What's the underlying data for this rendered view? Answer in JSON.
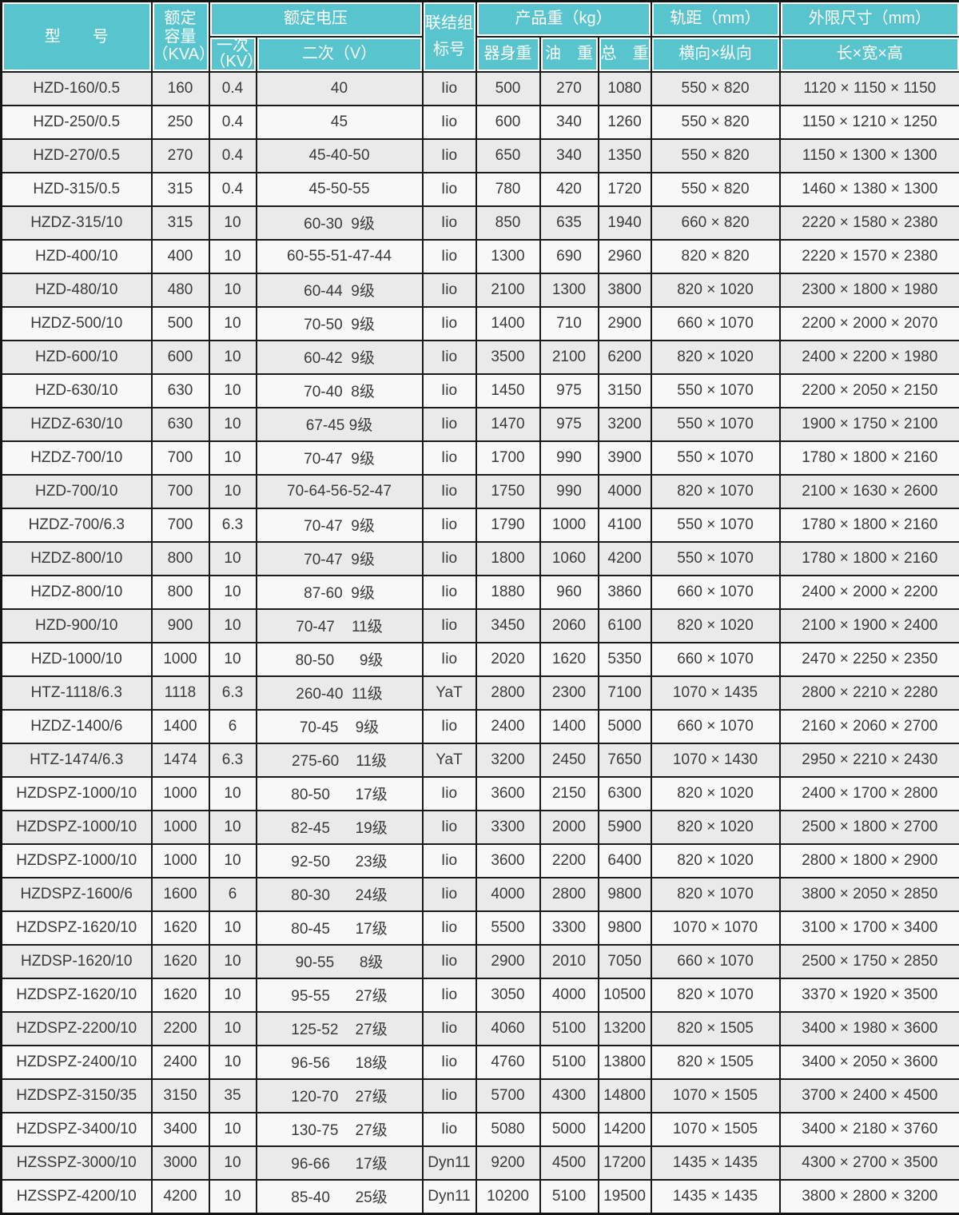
{
  "colors": {
    "header_bg": "#58C5CE",
    "header_text": "#FFFFFF",
    "row_odd_bg": "#EAEAEA",
    "row_even_bg": "#F8F8F8",
    "grid_line": "#1A1A1A",
    "body_text": "#3A3A3A"
  },
  "table": {
    "header": {
      "model": "型　　号",
      "capacity_l1": "额定",
      "capacity_l2": "容量",
      "capacity_l3": "（KVA）",
      "group_voltage": "额定电压",
      "primary_l1": "一次",
      "primary_l2": "（KV）",
      "secondary": "二次（V）",
      "vector_group_l1": "联结组",
      "vector_group_l2": "标号",
      "group_weight": "产品重（kg）",
      "body_weight": "器身重",
      "oil_weight": "油　重",
      "total_weight": "总　重",
      "group_gauge": "轨距（mm）",
      "gauge_sub": "横向×纵向",
      "group_dims": "外限尺寸（mm）",
      "dims_sub": "长×宽×高"
    },
    "col_keys": [
      "model",
      "capacity",
      "primary-kv",
      "secondary-v",
      "vector-group",
      "body-weight",
      "oil-weight",
      "total-weight",
      "gauge",
      "dimensions"
    ],
    "rows": [
      [
        "HZD-160/0.5",
        "160",
        "0.4",
        "40",
        "Iio",
        "500",
        "270",
        "1080",
        "550 × 820",
        "1120 × 1150 × 1150"
      ],
      [
        "HZD-250/0.5",
        "250",
        "0.4",
        "45",
        "Iio",
        "600",
        "340",
        "1260",
        "550 × 820",
        "1150 × 1210 × 1250"
      ],
      [
        "HZD-270/0.5",
        "270",
        "0.4",
        "45-40-50",
        "Iio",
        "650",
        "340",
        "1350",
        "550 × 820",
        "1150 × 1300 × 1300"
      ],
      [
        "HZD-315/0.5",
        "315",
        "0.4",
        "45-50-55",
        "Iio",
        "780",
        "420",
        "1720",
        "550 × 820",
        "1460 × 1380 × 1300"
      ],
      [
        "HZDZ-315/10",
        "315",
        "10",
        "60-30  9级",
        "Iio",
        "850",
        "635",
        "1940",
        "660 × 820",
        "2220 × 1580 × 2380"
      ],
      [
        "HZD-400/10",
        "400",
        "10",
        "60-55-51-47-44",
        "Iio",
        "1300",
        "690",
        "2960",
        "820 × 820",
        "2220 × 1570 × 2380"
      ],
      [
        "HZD-480/10",
        "480",
        "10",
        "60-44  9级",
        "Iio",
        "2100",
        "1300",
        "3800",
        "820 × 1020",
        "2300 × 1800 × 1980"
      ],
      [
        "HZDZ-500/10",
        "500",
        "10",
        "70-50  9级",
        "Iio",
        "1400",
        "710",
        "2900",
        "660 × 1070",
        "2200 × 2000 × 2070"
      ],
      [
        "HZD-600/10",
        "600",
        "10",
        "60-42  9级",
        "Iio",
        "3500",
        "2100",
        "6200",
        "820 × 1020",
        "2400 × 2200 × 1980"
      ],
      [
        "HZD-630/10",
        "630",
        "10",
        "70-40  8级",
        "Iio",
        "1450",
        "975",
        "3150",
        "550 × 1070",
        "2200 × 2050 × 2150"
      ],
      [
        "HZDZ-630/10",
        "630",
        "10",
        "67-45 9级",
        "Iio",
        "1470",
        "975",
        "3200",
        "550 × 1070",
        "1900 × 1750 × 2100"
      ],
      [
        "HZDZ-700/10",
        "700",
        "10",
        "70-47  9级",
        "Iio",
        "1700",
        "990",
        "3900",
        "550 × 1070",
        "1780 × 1800 × 2160"
      ],
      [
        "HZD-700/10",
        "700",
        "10",
        "70-64-56-52-47",
        "Iio",
        "1750",
        "990",
        "4000",
        "820 × 1070",
        "2100 × 1630 × 2600"
      ],
      [
        "HZDZ-700/6.3",
        "700",
        "6.3",
        "70-47  9级",
        "Iio",
        "1790",
        "1000",
        "4100",
        "550 × 1070",
        "1780 × 1800 × 2160"
      ],
      [
        "HZDZ-800/10",
        "800",
        "10",
        "70-47  9级",
        "Iio",
        "1800",
        "1060",
        "4200",
        "550 × 1070",
        "1780 × 1800 × 2160"
      ],
      [
        "HZDZ-800/10",
        "800",
        "10",
        "87-60  9级",
        "Iio",
        "1880",
        "960",
        "3860",
        "660 × 1070",
        "2400 × 2000 × 2200"
      ],
      [
        "HZD-900/10",
        "900",
        "10",
        "70-47    11级",
        "Iio",
        "3450",
        "2060",
        "6100",
        "820 × 1020",
        "2100 × 1900 × 2400"
      ],
      [
        "HZD-1000/10",
        "1000",
        "10",
        "80-50      9级",
        "Iio",
        "2020",
        "1620",
        "5350",
        "660 × 1070",
        "2470 × 2250 × 2350"
      ],
      [
        "HTZ-1118/6.3",
        "1118",
        "6.3",
        "260-40  11级",
        "YaT",
        "2800",
        "2300",
        "7100",
        "1070 × 1435",
        "2800 × 2210 × 2280"
      ],
      [
        "HZDZ-1400/6",
        "1400",
        "6",
        "70-45    9级",
        "Iio",
        "2400",
        "1400",
        "5000",
        "660 × 1070",
        "2160 × 2060 × 2700"
      ],
      [
        "HTZ-1474/6.3",
        "1474",
        "6.3",
        "275-60    11级",
        "YaT",
        "3200",
        "2450",
        "7650",
        "1070 × 1430",
        "2950 × 2210 × 2430"
      ],
      [
        "HZDSPZ-1000/10",
        "1000",
        "10",
        "80-50      17级",
        "Iio",
        "3600",
        "2150",
        "6300",
        "820 × 1020",
        "2400 × 1700 × 2800"
      ],
      [
        "HZDSPZ-1000/10",
        "1000",
        "10",
        "82-45      19级",
        "Iio",
        "3300",
        "2000",
        "5900",
        "820 × 1020",
        "2500 × 1800 × 2700"
      ],
      [
        "HZDSPZ-1000/10",
        "1000",
        "10",
        "92-50      23级",
        "Iio",
        "3600",
        "2200",
        "6400",
        "820 × 1020",
        "2800 × 1800 × 2900"
      ],
      [
        "HZDSPZ-1600/6",
        "1600",
        "6",
        "80-30      24级",
        "Iio",
        "4000",
        "2800",
        "9800",
        "820 × 1070",
        "3800 × 2050 × 2850"
      ],
      [
        "HZDSPZ-1620/10",
        "1620",
        "10",
        "80-45      17级",
        "Iio",
        "5500",
        "3300",
        "9800",
        "1070 × 1070",
        "3100 × 1700 × 3400"
      ],
      [
        "HZDSP-1620/10",
        "1620",
        "10",
        "90-55      8级",
        "Iio",
        "2900",
        "2010",
        "7050",
        "660 × 1070",
        "2500 × 1750 × 2850"
      ],
      [
        "HZDSPZ-1620/10",
        "1620",
        "10",
        "95-55      27级",
        "Iio",
        "3050",
        "4000",
        "10500",
        "820 × 1070",
        "3370 × 1920 × 3500"
      ],
      [
        "HZDSPZ-2200/10",
        "2200",
        "10",
        "125-52    27级",
        "Iio",
        "4060",
        "5100",
        "13200",
        "820 × 1505",
        "3400 × 1980 × 3600"
      ],
      [
        "HZDSPZ-2400/10",
        "2400",
        "10",
        "96-56      18级",
        "Iio",
        "4760",
        "5100",
        "13800",
        "820 × 1505",
        "3400 × 2050 × 3600"
      ],
      [
        "HZDSPZ-3150/35",
        "3150",
        "35",
        "120-70    27级",
        "Iio",
        "5700",
        "4300",
        "14800",
        "1070 × 1505",
        "3700 × 2400 × 4500"
      ],
      [
        "HZDSPZ-3400/10",
        "3400",
        "10",
        "130-75    27级",
        "Iio",
        "5080",
        "5000",
        "14200",
        "1070 × 1505",
        "3400 × 2180 × 3760"
      ],
      [
        "HZSSPZ-3000/10",
        "3000",
        "10",
        "96-66      17级",
        "Dyn11",
        "9200",
        "4500",
        "17200",
        "1435 × 1435",
        "4300 × 2700 × 3500"
      ],
      [
        "HZSSPZ-4200/10",
        "4200",
        "10",
        "85-40      25级",
        "Dyn11",
        "10200",
        "5100",
        "19500",
        "1435 × 1435",
        "3800 × 2800 × 3200"
      ]
    ]
  }
}
